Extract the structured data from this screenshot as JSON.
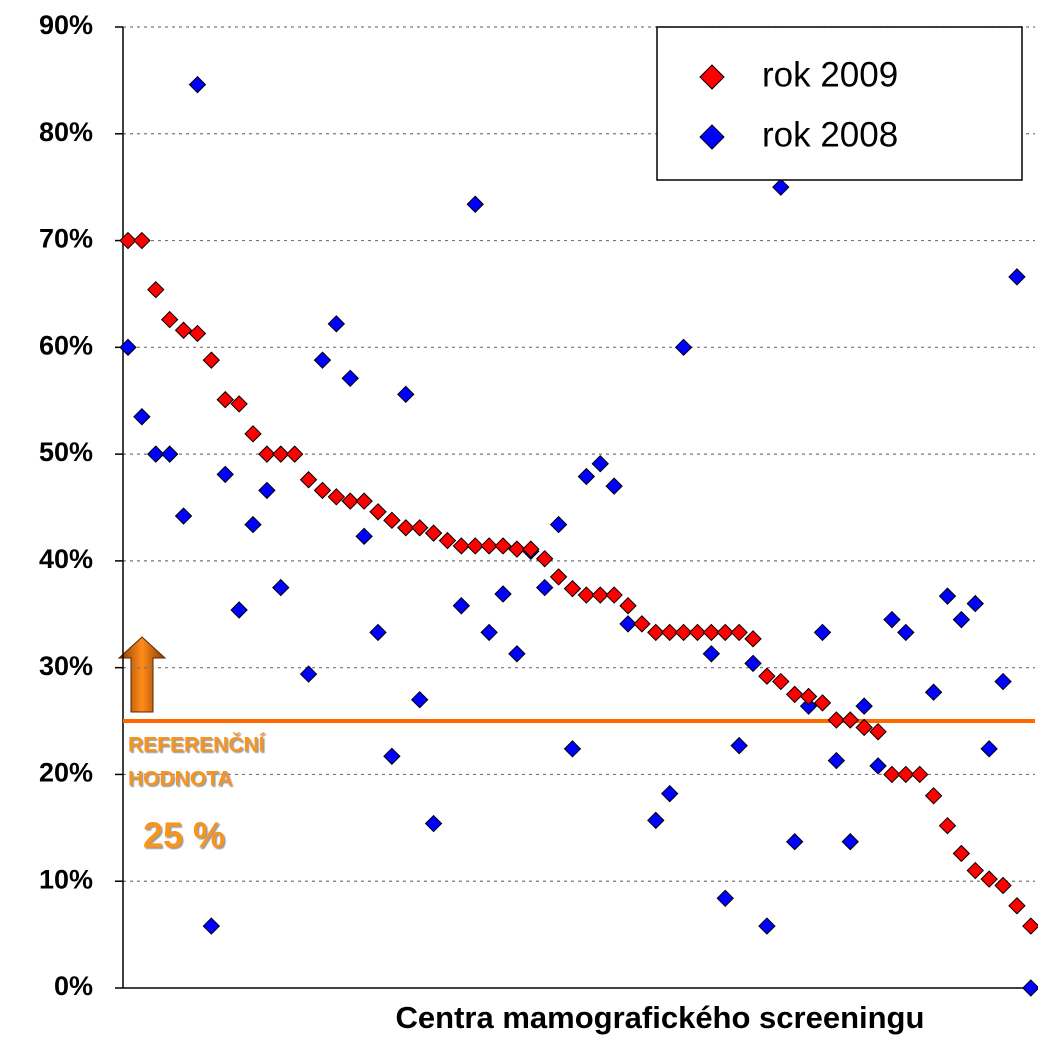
{
  "chart_data": {
    "type": "scatter",
    "x": [
      1,
      2,
      3,
      4,
      5,
      6,
      7,
      8,
      9,
      10,
      11,
      12,
      13,
      14,
      15,
      16,
      17,
      18,
      19,
      20,
      21,
      22,
      23,
      24,
      25,
      26,
      27,
      28,
      29,
      30,
      31,
      32,
      33,
      34,
      35,
      36,
      37,
      38,
      39,
      40,
      41,
      42,
      43,
      44,
      45,
      46,
      47,
      48,
      49,
      50,
      51,
      52,
      53,
      54,
      55,
      56,
      57,
      58,
      59,
      60,
      61,
      62,
      63,
      64,
      65,
      66
    ],
    "xlim": [
      0.64,
      66.3
    ],
    "ylim": [
      0,
      90
    ],
    "yticks": [
      {
        "value": 0,
        "label": "0%"
      },
      {
        "value": 10,
        "label": "10%"
      },
      {
        "value": 20,
        "label": "20%"
      },
      {
        "value": 30,
        "label": "30%"
      },
      {
        "value": 40,
        "label": "40%"
      },
      {
        "value": 50,
        "label": "50%"
      },
      {
        "value": 60,
        "label": "60%"
      },
      {
        "value": 70,
        "label": "70%"
      },
      {
        "value": 80,
        "label": "80%"
      },
      {
        "value": 90,
        "label": "90%"
      }
    ],
    "grid": true,
    "x_label": "Centra mamografického screeningu",
    "legend": "top-right",
    "series": [
      {
        "name": "rok 2009",
        "color": "#ff0000",
        "values": [
          70,
          70,
          65.4,
          62.6,
          61.6,
          61.3,
          58.8,
          55.1,
          54.7,
          51.9,
          50,
          50,
          50,
          47.6,
          46.6,
          46,
          45.6,
          45.6,
          44.6,
          43.8,
          43.1,
          43.1,
          42.6,
          41.9,
          41.4,
          41.4,
          41.4,
          41.4,
          41.1,
          41.1,
          40.2,
          38.5,
          37.4,
          36.8,
          36.8,
          36.8,
          35.8,
          34.1,
          33.3,
          33.3,
          33.3,
          33.3,
          33.3,
          33.3,
          33.3,
          32.7,
          29.2,
          28.7,
          27.5,
          27.3,
          26.7,
          25.1,
          25.1,
          24.4,
          24,
          20,
          20,
          20,
          18,
          15.2,
          12.6,
          11,
          10.2,
          9.6,
          7.7,
          5.8
        ]
      },
      {
        "name": "rok 2008",
        "color": "#0000ff",
        "values": [
          60,
          53.5,
          50,
          50,
          44.2,
          84.6,
          5.8,
          48.1,
          35.4,
          43.4,
          46.6,
          37.5,
          null,
          29.4,
          58.8,
          62.2,
          57.1,
          42.3,
          33.3,
          21.7,
          55.6,
          27,
          15.4,
          null,
          35.8,
          73.4,
          33.3,
          36.9,
          31.3,
          40.9,
          37.5,
          43.4,
          22.4,
          47.9,
          49.1,
          47,
          34.1,
          null,
          15.7,
          18.2,
          60,
          null,
          31.3,
          8.4,
          22.7,
          30.4,
          5.8,
          75,
          13.7,
          26.4,
          33.3,
          21.3,
          13.7,
          26.4,
          20.8,
          34.5,
          33.3,
          null,
          27.7,
          36.7,
          34.5,
          36,
          22.4,
          28.7,
          66.6,
          0
        ]
      }
    ],
    "reference_line": {
      "value": 25,
      "color": "#ff6a00"
    },
    "annotation": {
      "lines": [
        "REFERENČNÍ",
        "HODNOTA"
      ],
      "value_text": "25 %",
      "color": "#f7941d"
    }
  }
}
